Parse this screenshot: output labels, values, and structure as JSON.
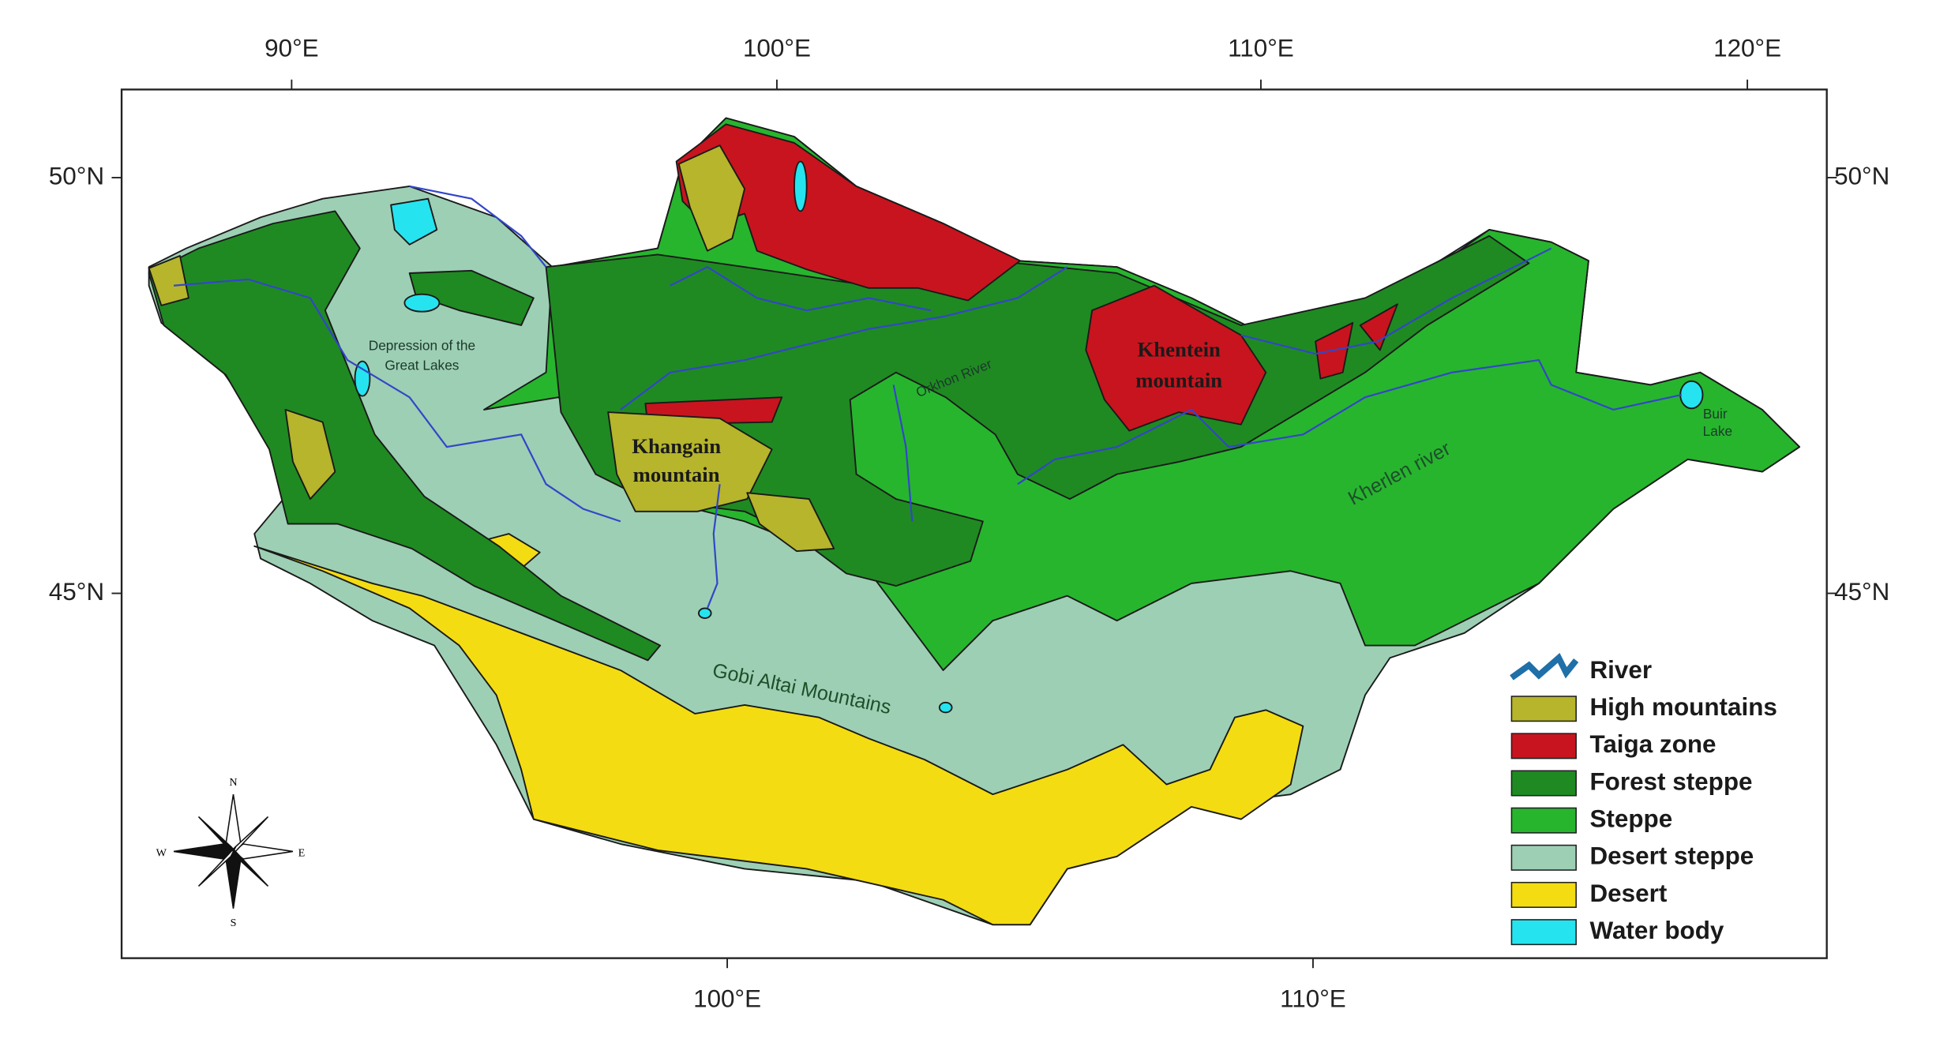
{
  "map": {
    "top_axis": [
      "90°E",
      "100°E",
      "110°E",
      "120°E"
    ],
    "bottom_axis": [
      "100°E",
      "110°E"
    ],
    "left_axis": [
      "50°N",
      "45°N"
    ],
    "right_axis": [
      "50°N",
      "45°N"
    ],
    "labels": {
      "great_lakes": [
        "Depression of the",
        "Great Lakes"
      ],
      "khangai": [
        "Khangain",
        "mountain"
      ],
      "khentei": [
        "Khentein",
        "mountain"
      ],
      "orkhon": "Orkhon River",
      "kherlen": "Kherlen river",
      "buir": [
        "Buir",
        "Lake"
      ],
      "gobi_altai": "Gobi Altai Mountains"
    },
    "compass": {
      "n": "N",
      "s": "S",
      "w": "W",
      "e": "E"
    },
    "legend": {
      "river": {
        "name": "River",
        "color": "#1f6fa8"
      },
      "items": [
        {
          "name": "High mountains",
          "color": "#b6b52c"
        },
        {
          "name": "Taiga zone",
          "color": "#c8141e"
        },
        {
          "name": "Forest steppe",
          "color": "#1f8a22"
        },
        {
          "name": "Steppe",
          "color": "#27b52e"
        },
        {
          "name": "Desert steppe",
          "color": "#9dcfb4"
        },
        {
          "name": "Desert",
          "color": "#f4dc12"
        },
        {
          "name": "Water body",
          "color": "#25e4ef"
        }
      ]
    }
  }
}
